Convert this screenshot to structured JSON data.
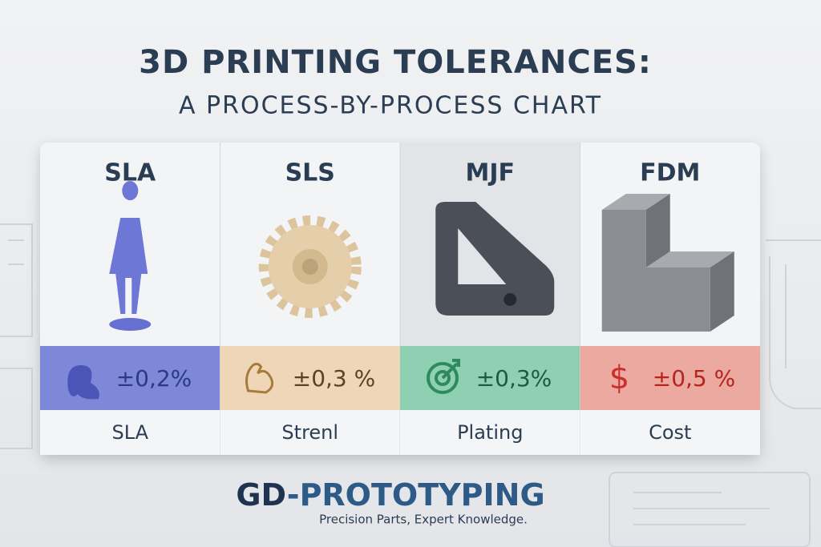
{
  "header": {
    "title": "3D PRINTING TOLERANCES:",
    "subtitle": "A PROCESS-BY-PROCESS CHART"
  },
  "cards": [
    {
      "process": "SLA",
      "tolerance": "±0,2%",
      "label": "SLA"
    },
    {
      "process": "SLS",
      "tolerance": "±0,3 %",
      "label": "Strenl"
    },
    {
      "process": "MJF",
      "tolerance": "±0,3%",
      "label": "Plating"
    },
    {
      "process": "FDM",
      "tolerance": "±0,5 %",
      "label": "Cost"
    }
  ],
  "footer": {
    "brand_mark": "GD",
    "brand_name": "-PROTOTYPING",
    "tagline": "Precision Parts, Expert Knowledge."
  }
}
